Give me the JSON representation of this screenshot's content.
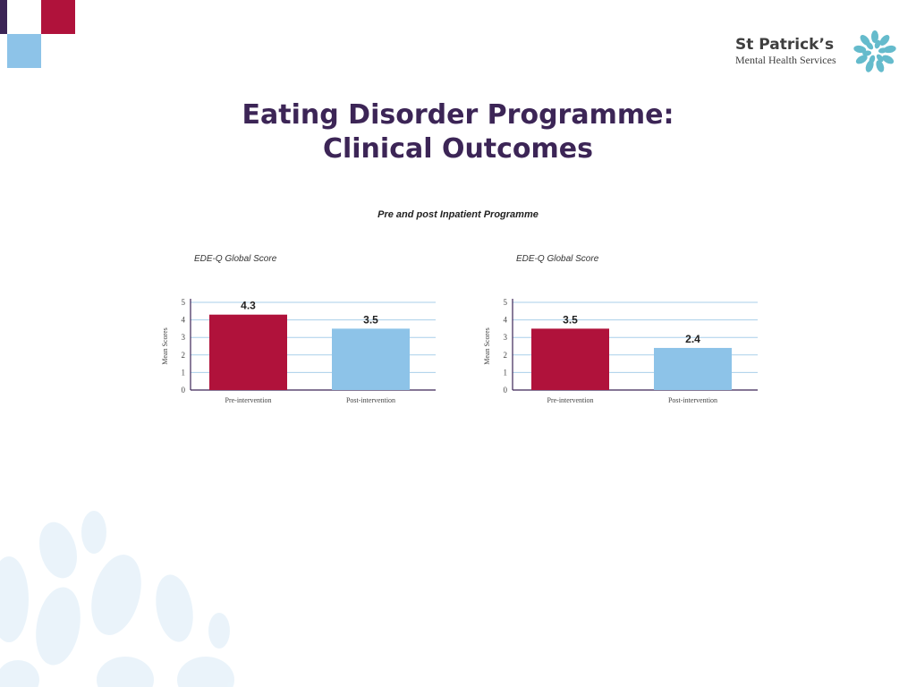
{
  "brand": {
    "name": "St Patrick’s",
    "subtitle": "Mental Health Services",
    "colors": {
      "purple": "#3c2556",
      "crimson": "#b0123b",
      "light_blue": "#8dc3e8",
      "teal": "#4bb0c4"
    }
  },
  "page": {
    "title_line1": "Eating Disorder Programme:",
    "title_line2": "Clinical Outcomes",
    "subtitle": "Pre and post Inpatient Programme"
  },
  "chart_data": [
    {
      "type": "bar",
      "title": "EDE-Q Global Score",
      "ylabel": "Mean Scores",
      "xlabel": "",
      "categories": [
        "Pre-intervention",
        "Post-intervention"
      ],
      "values": [
        4.3,
        3.5
      ],
      "value_labels": [
        "4.3",
        "3.5"
      ],
      "colors": [
        "#b0123b",
        "#8dc3e8"
      ],
      "yticks": [
        "0",
        "1",
        "2",
        "3",
        "4",
        "5"
      ],
      "ylim": [
        0,
        5
      ],
      "grid": true
    },
    {
      "type": "bar",
      "title": "EDE-Q Global Score",
      "ylabel": "Mean Scores",
      "xlabel": "",
      "categories": [
        "Pre-intervention",
        "Post-intervention"
      ],
      "values": [
        3.5,
        2.4
      ],
      "value_labels": [
        "3.5",
        "2.4"
      ],
      "colors": [
        "#b0123b",
        "#8dc3e8"
      ],
      "yticks": [
        "0",
        "1",
        "2",
        "3",
        "4",
        "5"
      ],
      "ylim": [
        0,
        5
      ],
      "grid": true
    }
  ]
}
